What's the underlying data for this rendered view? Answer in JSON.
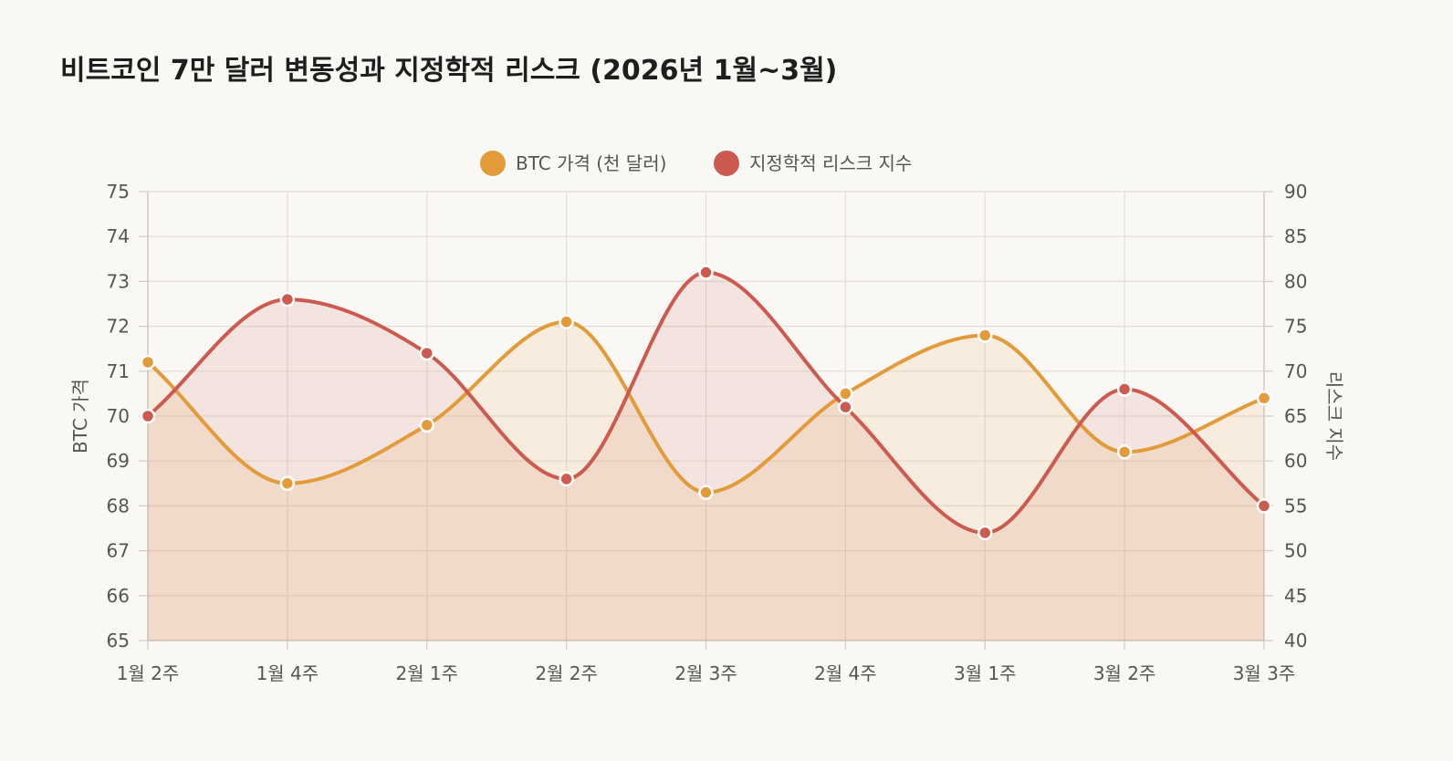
{
  "page": {
    "title": "비트코인 7만 달러 변동성과 지정학적 리스크 (2026년 1월~3월)",
    "background": "#faf8f4"
  },
  "chart_data": {
    "type": "line",
    "title": "비트코인 7만 달러 변동성과 지정학적 리스크 (2026년 1월~3월)",
    "categories": [
      "1월 2주",
      "1월 4주",
      "2월 1주",
      "2월 2주",
      "2월 3주",
      "2월 4주",
      "3월 1주",
      "3월 2주",
      "3월 3주"
    ],
    "legend_position": "top-center",
    "grid": true,
    "smooth": true,
    "filled": true,
    "series": [
      {
        "name": "BTC 가격 (천 달러)",
        "axis": "left",
        "color": "#e39b3a",
        "fill": "#f7e3cf",
        "values": [
          71.2,
          68.5,
          69.8,
          72.1,
          68.3,
          70.5,
          71.8,
          69.2,
          70.4
        ]
      },
      {
        "name": "지정학적 리스크 지수",
        "axis": "right",
        "color": "#cc5a4e",
        "fill": "#f4dcd8",
        "values": [
          65,
          78,
          72,
          58,
          81,
          66,
          52,
          68,
          55
        ]
      }
    ],
    "y_left": {
      "label": "BTC 가격",
      "ylim": [
        65,
        75
      ],
      "ticks": [
        "75",
        "74",
        "73",
        "72",
        "71",
        "70",
        "69",
        "68",
        "67",
        "66",
        "65"
      ]
    },
    "y_right": {
      "label": "리스크 지수",
      "ylim": [
        40,
        90
      ],
      "ticks": [
        "90",
        "85",
        "80",
        "75",
        "70",
        "65",
        "60",
        "55",
        "50",
        "45",
        "40"
      ]
    }
  }
}
